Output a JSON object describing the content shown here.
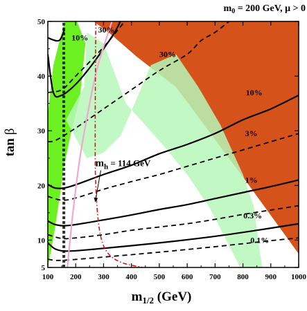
{
  "chart_data": {
    "type": "line",
    "title": "m",
    "title_sub": "0",
    "title_rest": " = 200 GeV,  μ > 0",
    "xlabel_main": "m",
    "xlabel_sub": "1/2",
    "xlabel_rest": " (GeV)",
    "ylabel_main": "tan ",
    "ylabel_greek": "β",
    "xlim": [
      100,
      1000
    ],
    "ylim": [
      5,
      50
    ],
    "x_ticks": [
      100,
      200,
      300,
      400,
      500,
      600,
      700,
      800,
      900,
      1000
    ],
    "y_ticks": [
      5,
      10,
      20,
      30,
      40,
      50
    ],
    "grid": false,
    "colors": {
      "excluded_orange": "#d5521a",
      "green_dark": "#6cf022",
      "green_light": "#b6f7b8",
      "pink_line": "#f0a8d0",
      "red_dashdot": "#e01010",
      "black": "#000000"
    },
    "regions": [
      {
        "name": "stau-LSP excluded (orange)",
        "polygon": [
          [
            265,
            50
          ],
          [
            1000,
            50
          ],
          [
            1000,
            7.5
          ],
          [
            815,
            20.5
          ],
          [
            560,
            38
          ],
          [
            420,
            43.5
          ],
          [
            330,
            47.5
          ]
        ]
      },
      {
        "name": "b→sγ excluded (dark green)",
        "polygon": [
          [
            100,
            5
          ],
          [
            100,
            33
          ],
          [
            120,
            42
          ],
          [
            160,
            50
          ],
          [
            205,
            50
          ],
          [
            235,
            46
          ],
          [
            215,
            36
          ],
          [
            185,
            30
          ],
          [
            160,
            24
          ],
          [
            140,
            17
          ],
          [
            125,
            12
          ],
          [
            115,
            9
          ]
        ]
      },
      {
        "name": "cosmology band (light green)",
        "polygon": [
          [
            165,
            32
          ],
          [
            230,
            38
          ],
          [
            240,
            48
          ],
          [
            300,
            46
          ],
          [
            380,
            35
          ],
          [
            450,
            31
          ],
          [
            520,
            27
          ],
          [
            600,
            22
          ],
          [
            680,
            16
          ],
          [
            730,
            11
          ],
          [
            760,
            8
          ],
          [
            790,
            5
          ],
          [
            870,
            5
          ],
          [
            860,
            8
          ],
          [
            850,
            12
          ],
          [
            840,
            16
          ],
          [
            800,
            22
          ],
          [
            720,
            31
          ],
          [
            640,
            38
          ],
          [
            560,
            44
          ],
          [
            470,
            42
          ],
          [
            420,
            36
          ],
          [
            360,
            29
          ],
          [
            300,
            26
          ],
          [
            240,
            25
          ]
        ]
      }
    ],
    "series": [
      {
        "style": "solid",
        "label": "",
        "points": [
          [
            100,
            44
          ],
          [
            120,
            37
          ],
          [
            150,
            36.5
          ],
          [
            200,
            38.5
          ],
          [
            250,
            41.5
          ],
          [
            300,
            45
          ],
          [
            340,
            48
          ],
          [
            360,
            50
          ]
        ]
      },
      {
        "style": "solid",
        "label": "",
        "points": [
          [
            100,
            47
          ],
          [
            140,
            46.5
          ],
          [
            160,
            48.5
          ]
        ]
      },
      {
        "style": "solid",
        "label": "10%",
        "points": [
          [
            100,
            20.2
          ],
          [
            130,
            19.5
          ],
          [
            180,
            19.8
          ],
          [
            300,
            22
          ],
          [
            400,
            23.7
          ],
          [
            500,
            25.8
          ],
          [
            600,
            27.5
          ],
          [
            700,
            29.5
          ],
          [
            800,
            32
          ],
          [
            900,
            34
          ],
          [
            1000,
            36.5
          ]
        ]
      },
      {
        "style": "solid",
        "label": "1%",
        "points": [
          [
            100,
            13.5
          ],
          [
            130,
            12.8
          ],
          [
            180,
            12.7
          ],
          [
            300,
            13.7
          ],
          [
            400,
            14.6
          ],
          [
            500,
            15.6
          ],
          [
            600,
            16.5
          ],
          [
            700,
            17.6
          ],
          [
            800,
            18.7
          ],
          [
            900,
            19.8
          ],
          [
            1000,
            21
          ]
        ]
      },
      {
        "style": "solid",
        "label": "0.1%",
        "points": [
          [
            100,
            9.5
          ],
          [
            130,
            8.3
          ],
          [
            180,
            8.0
          ],
          [
            300,
            8.5
          ],
          [
            500,
            9.5
          ],
          [
            700,
            10.7
          ],
          [
            850,
            11.8
          ],
          [
            1000,
            13
          ]
        ]
      },
      {
        "style": "dashed",
        "label": "",
        "points": [
          [
            100,
            37
          ],
          [
            150,
            37.5
          ],
          [
            200,
            40
          ],
          [
            300,
            45.3
          ],
          [
            360,
            49
          ],
          [
            375,
            50
          ]
        ]
      },
      {
        "style": "dashed",
        "label": "30%",
        "points": [
          [
            100,
            28
          ],
          [
            130,
            28.3
          ],
          [
            200,
            30.5
          ],
          [
            300,
            34
          ],
          [
            400,
            37.5
          ],
          [
            500,
            41
          ],
          [
            600,
            44
          ],
          [
            650,
            46.5
          ],
          [
            700,
            48
          ],
          [
            750,
            50
          ]
        ]
      },
      {
        "style": "dashed",
        "label": "3%",
        "points": [
          [
            100,
            18
          ],
          [
            150,
            17.3
          ],
          [
            200,
            17.7
          ],
          [
            300,
            19.3
          ],
          [
            400,
            20.7
          ],
          [
            500,
            22
          ],
          [
            600,
            23.5
          ],
          [
            700,
            25
          ],
          [
            800,
            26.5
          ],
          [
            900,
            28
          ],
          [
            1000,
            29.5
          ]
        ]
      },
      {
        "style": "dashed",
        "label": "0.3%",
        "points": [
          [
            100,
            11
          ],
          [
            150,
            10.3
          ],
          [
            200,
            10.4
          ],
          [
            300,
            11
          ],
          [
            400,
            11.8
          ],
          [
            500,
            12.4
          ],
          [
            600,
            13
          ],
          [
            700,
            13.8
          ],
          [
            800,
            14.7
          ],
          [
            900,
            15.5
          ],
          [
            1000,
            16.3
          ]
        ]
      },
      {
        "style": "dashed",
        "label": "",
        "points": [
          [
            100,
            6.5
          ],
          [
            150,
            6.3
          ],
          [
            300,
            6.9
          ],
          [
            500,
            7.8
          ],
          [
            700,
            8.8
          ],
          [
            900,
            9.9
          ],
          [
            1000,
            10.4
          ]
        ]
      },
      {
        "style": "vdashed",
        "label": "",
        "points": [
          [
            155,
            5
          ],
          [
            155,
            50
          ]
        ]
      },
      {
        "style": "vdashed",
        "label": "",
        "points": [
          [
            160,
            5
          ],
          [
            160,
            50
          ]
        ]
      },
      {
        "style": "pink",
        "label": "",
        "points": [
          [
            170,
            5
          ],
          [
            190,
            15
          ],
          [
            215,
            25
          ],
          [
            250,
            35
          ],
          [
            280,
            42
          ],
          [
            330,
            50
          ]
        ]
      },
      {
        "style": "dashdot",
        "label": "m_h = 114 GeV",
        "points": [
          [
            272,
            50
          ],
          [
            270,
            30
          ],
          [
            272,
            20
          ],
          [
            285,
            12
          ],
          [
            310,
            8
          ],
          [
            360,
            6
          ],
          [
            440,
            5
          ]
        ]
      }
    ],
    "labels": [
      {
        "text": "10%",
        "x": 215,
        "y": 47
      },
      {
        "text": "30%",
        "x": 310,
        "y": 48.5
      },
      {
        "text": "30%",
        "x": 530,
        "y": 44
      },
      {
        "text": "10%",
        "x": 840,
        "y": 37
      },
      {
        "text": "3%",
        "x": 830,
        "y": 29.5
      },
      {
        "text": "1%",
        "x": 830,
        "y": 21
      },
      {
        "text": "0.3%",
        "x": 835,
        "y": 14.5
      },
      {
        "text": "0.1%",
        "x": 860,
        "y": 10
      }
    ],
    "mh_annotation": {
      "main": "m",
      "sub": "h",
      "rest": " = 114 GeV",
      "x": 300,
      "y": 23.5,
      "arrow_to": [
        270,
        17
      ]
    }
  }
}
